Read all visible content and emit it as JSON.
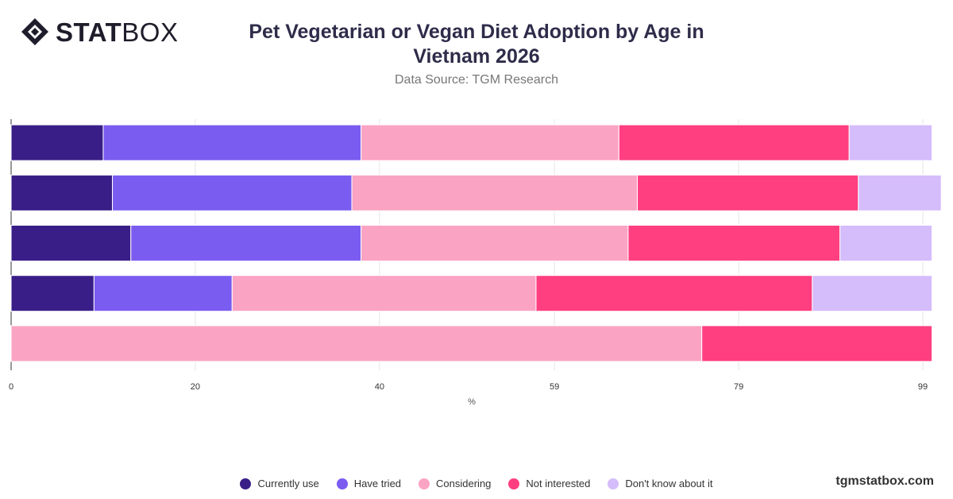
{
  "brand": {
    "logo_bold": "STAT",
    "logo_light": "BOX",
    "site": "tgmstatbox.com"
  },
  "chart_data": {
    "type": "bar",
    "orientation": "horizontal",
    "stacked": true,
    "title": "Pet Vegetarian or Vegan Diet Adoption by Age in Vietnam 2026",
    "subtitle": "Data Source: TGM Research",
    "xlabel": "%",
    "ylabel": "",
    "xlim": [
      0,
      99
    ],
    "x_ticks": [
      "0",
      "20",
      "40",
      "59",
      "79",
      "99"
    ],
    "grid": true,
    "legend_position": "bottom",
    "categories": [
      "",
      "",
      "",
      "",
      ""
    ],
    "series": [
      {
        "name": "Currently use",
        "color": "#3a1e87",
        "values": [
          10,
          11,
          13,
          9,
          0
        ]
      },
      {
        "name": "Have tried",
        "color": "#7b5cf0",
        "values": [
          28,
          26,
          25,
          15,
          0
        ]
      },
      {
        "name": "Considering",
        "color": "#fba3c3",
        "values": [
          28,
          31,
          29,
          33,
          75
        ]
      },
      {
        "name": "Not interested",
        "color": "#ff3f80",
        "values": [
          25,
          24,
          23,
          30,
          25
        ]
      },
      {
        "name": "Don't know about it",
        "color": "#d5bcfb",
        "values": [
          9,
          9,
          10,
          13,
          0
        ]
      }
    ]
  }
}
